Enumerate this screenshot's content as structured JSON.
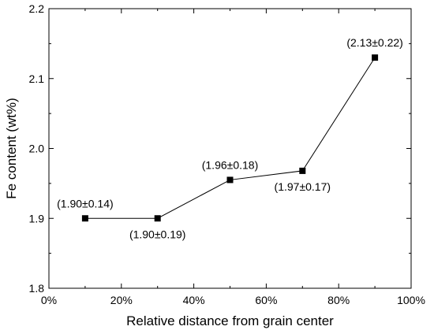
{
  "chart_data": {
    "type": "line",
    "xlabel": "Relative distance from grain center",
    "ylabel": "Fe content (wt%)",
    "xlim": [
      0,
      100
    ],
    "ylim": [
      1.8,
      2.2
    ],
    "x_ticks": [
      0,
      20,
      40,
      60,
      80,
      100
    ],
    "x_tick_labels": [
      "0%",
      "20%",
      "40%",
      "60%",
      "80%",
      "100%"
    ],
    "y_ticks": [
      1.8,
      1.9,
      2.0,
      2.1,
      2.2
    ],
    "y_tick_labels": [
      "1.8",
      "1.9",
      "2.0",
      "2.1",
      "2.2"
    ],
    "grid": false,
    "marker": "square",
    "line_color": "#000000",
    "series": [
      {
        "x": [
          10,
          30,
          50,
          70,
          90
        ],
        "y": [
          1.9,
          1.9,
          1.955,
          1.968,
          2.13
        ],
        "annotations": [
          "(1.90±0.14)",
          "(1.90±0.19)",
          "(1.96±0.18)",
          "(1.97±0.17)",
          "(2.13±0.22)"
        ]
      }
    ]
  }
}
